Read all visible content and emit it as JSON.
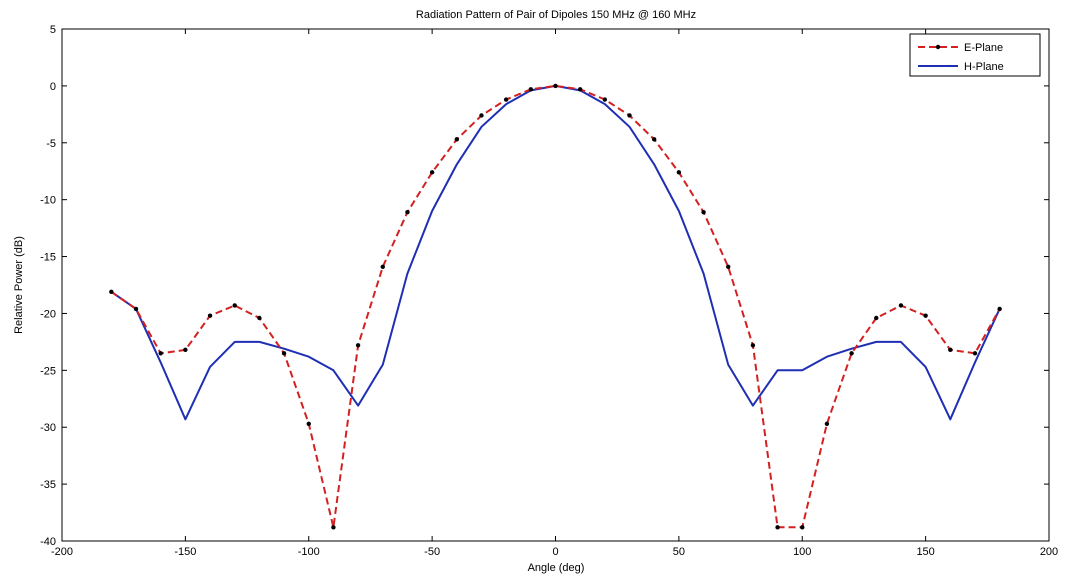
{
  "chart_data": {
    "type": "line",
    "title": "Radiation Pattern of Pair of Dipoles 150 MHz @ 160 MHz",
    "xlabel": "Angle (deg)",
    "ylabel": "Relative Power (dB)",
    "xlim": [
      -200,
      200
    ],
    "ylim": [
      -40,
      5
    ],
    "xticks": [
      -200,
      -150,
      -100,
      -50,
      0,
      50,
      100,
      150,
      200
    ],
    "yticks": [
      5,
      0,
      -5,
      -10,
      -15,
      -20,
      -25,
      -30,
      -35,
      -40
    ],
    "grid": false,
    "legend_position": "top-right",
    "series": [
      {
        "name": "E-Plane",
        "color": "#d42020",
        "style": "dashed",
        "markers": true,
        "marker_color": "#000000",
        "x": [
          -180,
          -170,
          -160,
          -150,
          -140,
          -130,
          -120,
          -110,
          -100,
          -90,
          -80,
          -70,
          -60,
          -50,
          -40,
          -30,
          -20,
          -10,
          0,
          10,
          20,
          30,
          40,
          50,
          60,
          70,
          80,
          90,
          100,
          110,
          120,
          130,
          140,
          150,
          160,
          170,
          180
        ],
        "y": [
          -18.1,
          -19.6,
          -23.5,
          -23.2,
          -20.2,
          -19.3,
          -20.4,
          -23.5,
          -29.7,
          -38.8,
          -22.8,
          -15.9,
          -11.1,
          -7.6,
          -4.7,
          -2.6,
          -1.2,
          -0.3,
          0,
          -0.3,
          -1.2,
          -2.6,
          -4.7,
          -7.6,
          -11.1,
          -15.9,
          -22.8,
          -38.8,
          -38.8,
          -29.7,
          -23.5,
          -20.4,
          -19.3,
          -20.2,
          -23.2,
          -23.5,
          -19.6
        ]
      },
      {
        "name": "H-Plane",
        "color": "#1f2fb4",
        "style": "solid",
        "markers": false,
        "x": [
          -180,
          -170,
          -160,
          -150,
          -140,
          -130,
          -120,
          -110,
          -100,
          -90,
          -80,
          -70,
          -60,
          -50,
          -40,
          -30,
          -20,
          -10,
          0,
          10,
          20,
          30,
          40,
          50,
          60,
          70,
          80,
          90,
          100,
          110,
          120,
          130,
          140,
          150,
          160,
          170,
          180
        ],
        "y": [
          -18.1,
          -19.6,
          -24.3,
          -29.3,
          -24.7,
          -22.5,
          -22.5,
          -23.1,
          -23.8,
          -25.0,
          -28.1,
          -24.5,
          -16.5,
          -11.0,
          -6.9,
          -3.6,
          -1.6,
          -0.4,
          0,
          -0.4,
          -1.6,
          -3.6,
          -6.9,
          -11.0,
          -16.5,
          -24.5,
          -28.1,
          -25.0,
          -25.0,
          -23.8,
          -23.1,
          -22.5,
          -22.5,
          -24.7,
          -29.3,
          -24.3,
          -19.6
        ]
      }
    ]
  }
}
